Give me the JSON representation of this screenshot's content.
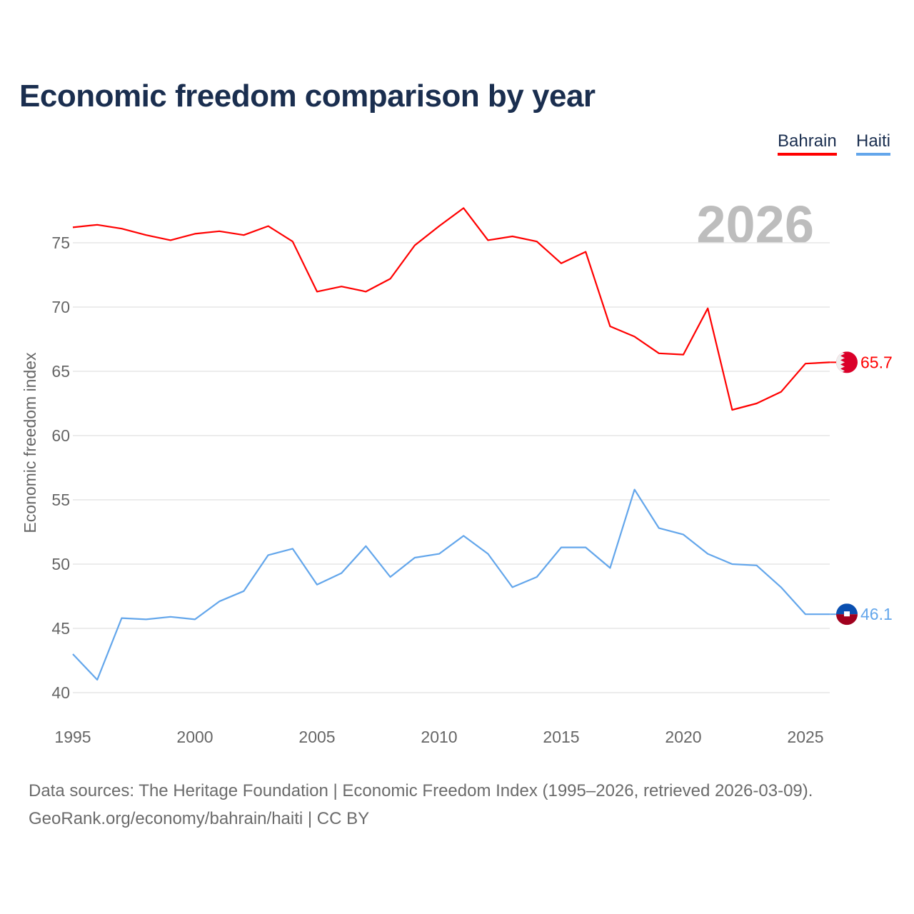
{
  "title": "Economic freedom comparison by year",
  "legend": [
    {
      "label": "Bahrain",
      "color": "#ff0000"
    },
    {
      "label": "Haiti",
      "color": "#63a6eb"
    }
  ],
  "footer": {
    "line1": "Data sources: The Heritage Foundation | Economic Freedom Index (1995–2026, retrieved 2026-03-09).",
    "line2": "GeoRank.org/economy/bahrain/haiti | CC BY"
  },
  "chart_data": {
    "type": "line",
    "title": "Economic freedom comparison by year",
    "ylabel": "Economic freedom index",
    "xlabel": "",
    "year_watermark": "2026",
    "xlim": [
      1995,
      2026
    ],
    "ylim": [
      37.5,
      78.5
    ],
    "xticks": [
      1995,
      2000,
      2005,
      2010,
      2015,
      2020,
      2025
    ],
    "yticks": [
      40,
      45,
      50,
      55,
      60,
      65,
      70,
      75
    ],
    "grid": true,
    "legend_position": "top-right",
    "x": [
      1995,
      1996,
      1997,
      1998,
      1999,
      2000,
      2001,
      2002,
      2003,
      2004,
      2005,
      2006,
      2007,
      2008,
      2009,
      2010,
      2011,
      2012,
      2013,
      2014,
      2015,
      2016,
      2017,
      2018,
      2019,
      2020,
      2021,
      2022,
      2023,
      2024,
      2025,
      2026
    ],
    "series": [
      {
        "name": "Bahrain",
        "color": "#ff0000",
        "end_label": "65.7",
        "values": [
          76.2,
          76.4,
          76.1,
          75.6,
          75.2,
          75.7,
          75.9,
          75.6,
          76.3,
          75.1,
          71.2,
          71.6,
          71.2,
          72.2,
          74.8,
          76.3,
          77.7,
          75.2,
          75.5,
          75.1,
          73.4,
          74.3,
          68.5,
          67.7,
          66.4,
          66.3,
          69.9,
          62.0,
          62.5,
          63.4,
          65.6,
          65.7
        ]
      },
      {
        "name": "Haiti",
        "color": "#63a6eb",
        "end_label": "46.1",
        "values": [
          43.0,
          41.0,
          45.8,
          45.7,
          45.9,
          45.7,
          47.1,
          47.9,
          50.7,
          51.2,
          48.4,
          49.3,
          51.4,
          49.0,
          50.5,
          50.8,
          52.2,
          50.8,
          48.2,
          49.0,
          51.3,
          51.3,
          49.7,
          55.8,
          52.8,
          52.3,
          50.8,
          50.0,
          49.9,
          48.2,
          46.1,
          46.1
        ]
      }
    ]
  }
}
